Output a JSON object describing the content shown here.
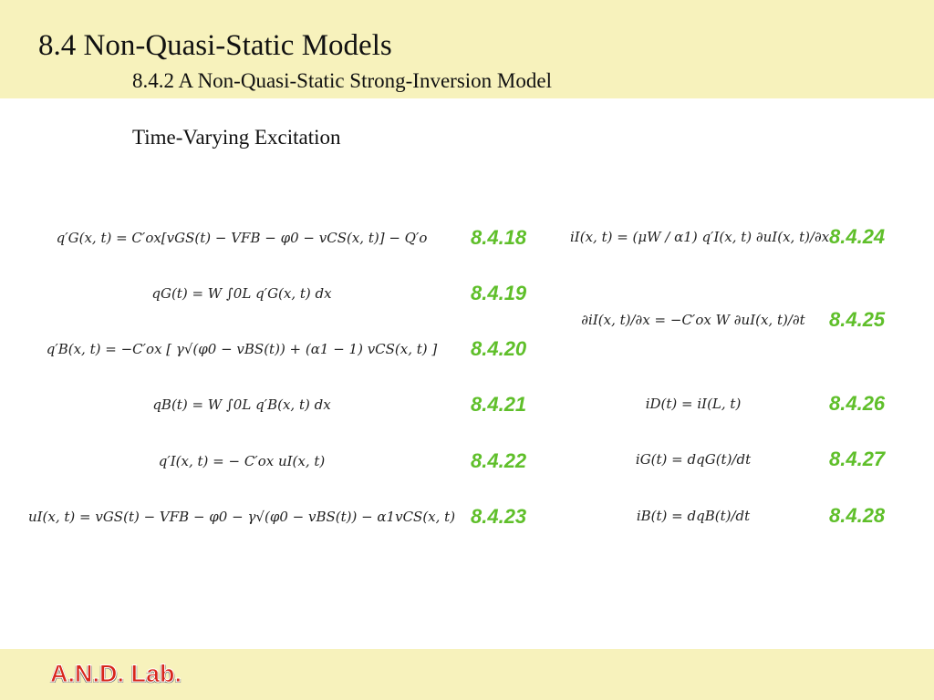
{
  "header": {
    "title": "8.4 Non-Quasi-Static Models",
    "subtitle": "8.4.2 A Non-Quasi-Static Strong-Inversion Model"
  },
  "section_heading": "Time-Varying Excitation",
  "left_equations": [
    {
      "formula": "q′G(x, t) = C′ox[vGS(t) − VFB − φ0 − vCS(x, t)] − Q′o",
      "number": "8.4.18"
    },
    {
      "formula": "qG(t) = W ∫0L q′G(x, t) dx",
      "number": "8.4.19"
    },
    {
      "formula": "q′B(x, t) = −C′ox [ γ√(φ0 − vBS(t)) + (α1 − 1) vCS(x, t) ]",
      "number": "8.4.20"
    },
    {
      "formula": "qB(t) = W ∫0L q′B(x, t) dx",
      "number": "8.4.21"
    },
    {
      "formula": "q′I(x, t) = − C′ox uI(x, t)",
      "number": "8.4.22"
    },
    {
      "formula": "uI(x, t) = vGS(t) − VFB − φ0 − γ√(φ0 − vBS(t)) − α1vCS(x, t)",
      "number": "8.4.23"
    }
  ],
  "right_equations": [
    {
      "formula": "iI(x, t) = (μW / α1) q′I(x, t) ∂uI(x, t)/∂x",
      "number": "8.4.24"
    },
    {
      "formula": "∂iI(x, t)/∂x = −C′ox W ∂uI(x, t)/∂t",
      "number": "8.4.25"
    },
    {
      "formula": "iD(t) = iI(L, t)",
      "number": "8.4.26"
    },
    {
      "formula": "iG(t) = dqG(t)/dt",
      "number": "8.4.27"
    },
    {
      "formula": "iB(t) = dqB(t)/dt",
      "number": "8.4.28"
    }
  ],
  "footer": {
    "logo": "A.N.D. Lab."
  }
}
